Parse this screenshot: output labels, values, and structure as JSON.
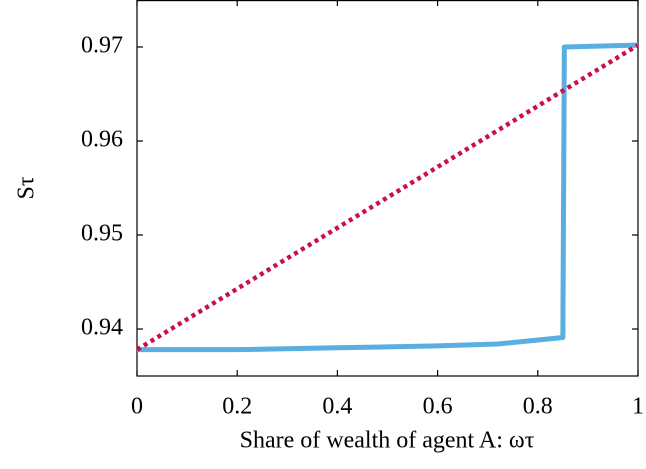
{
  "chart_data": {
    "type": "line",
    "x_label": "Share of wealth of agent A: ωτ",
    "y_label": "Sτ",
    "series": [
      {
        "color": "#5aafe0",
        "style": "solid",
        "x": [
          0,
          0.2,
          0.4,
          0.6,
          0.72,
          0.85,
          0.853,
          1
        ],
        "values": [
          0.9378,
          0.9378,
          0.938,
          0.9382,
          0.9384,
          0.9391,
          0.97,
          0.9702
        ]
      },
      {
        "color": "#c8104e",
        "style": "dotted",
        "x": [
          0,
          1
        ],
        "values": [
          0.9378,
          0.9702
        ]
      }
    ],
    "xlim": [
      0,
      1
    ],
    "xticks": [
      0,
      0.2,
      0.4,
      0.6,
      0.8,
      1
    ],
    "ylim": [
      0.935,
      0.975
    ],
    "yticks": [
      0.94,
      0.95,
      0.96,
      0.97
    ]
  }
}
